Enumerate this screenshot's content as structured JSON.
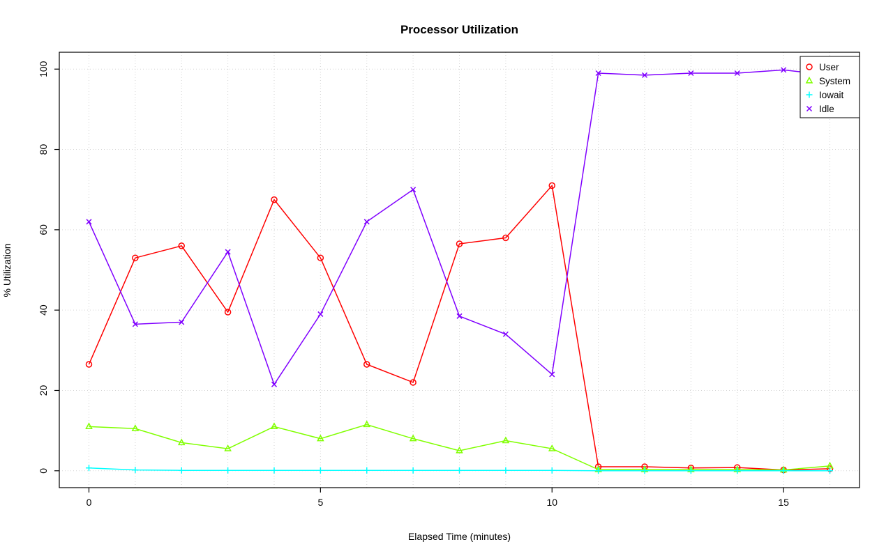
{
  "chart_data": {
    "type": "line",
    "title": "Processor Utilization",
    "xlabel": "Elapsed Time (minutes)",
    "ylabel": "% Utilization",
    "x": [
      0,
      1,
      2,
      3,
      4,
      5,
      6,
      7,
      8,
      9,
      10,
      11,
      12,
      13,
      14,
      15,
      16
    ],
    "xticks": [
      0,
      5,
      10,
      15
    ],
    "yticks": [
      0,
      20,
      40,
      60,
      80,
      100
    ],
    "xlim": [
      -0.64,
      16.64
    ],
    "ylim": [
      -4.2,
      104.2
    ],
    "grid": true,
    "grid_color": "#D3D3D3",
    "grid_style": "dotted",
    "grid_x": [
      0,
      1,
      2,
      3,
      4,
      5,
      6,
      7,
      8,
      9,
      10,
      11,
      12,
      13,
      14,
      15,
      16
    ],
    "grid_y": [
      0,
      20,
      40,
      60,
      80,
      100
    ],
    "legend_position": "top-right",
    "series": [
      {
        "name": "User",
        "color": "#FF0000",
        "marker": "circle",
        "values": [
          26.5,
          53,
          56,
          39.5,
          67.5,
          53,
          26.5,
          22,
          56.5,
          58,
          71,
          1,
          1,
          0.7,
          0.8,
          0.2,
          0.5
        ]
      },
      {
        "name": "System",
        "color": "#80FF00",
        "marker": "triangle",
        "values": [
          11,
          10.5,
          7,
          5.5,
          11,
          8,
          11.5,
          8,
          5,
          7.5,
          5.5,
          0.3,
          0.3,
          0.3,
          0.3,
          0.2,
          1.2
        ]
      },
      {
        "name": "Iowait",
        "color": "#00FFFF",
        "marker": "plus",
        "values": [
          0.7,
          0.2,
          0.1,
          0.1,
          0.1,
          0.1,
          0.1,
          0.1,
          0.1,
          0.1,
          0.1,
          0,
          0,
          0,
          0,
          0,
          0
        ]
      },
      {
        "name": "Idle",
        "color": "#8000FF",
        "marker": "x",
        "values": [
          62,
          36.5,
          37,
          54.5,
          21.5,
          39,
          62,
          70,
          38.5,
          34,
          24,
          99,
          98.5,
          99,
          99,
          99.8,
          98.5
        ]
      }
    ]
  }
}
